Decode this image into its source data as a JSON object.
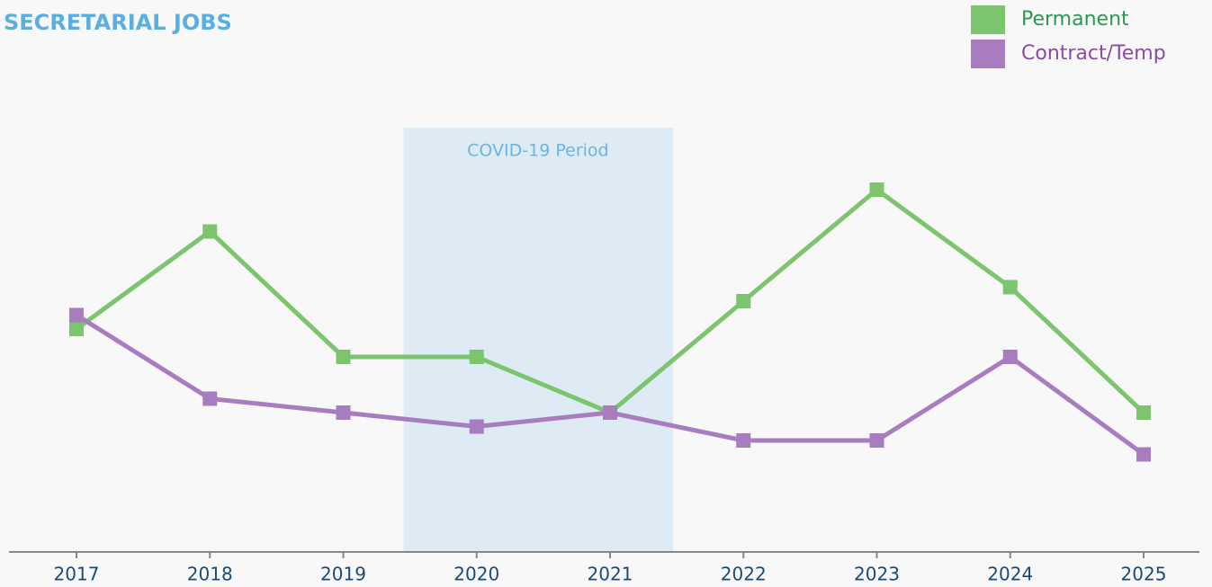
{
  "chart_data": {
    "type": "line",
    "title": "SECRETARIAL JOBS",
    "categories": [
      "2017",
      "2018",
      "2019",
      "2020",
      "2021",
      "2022",
      "2023",
      "2024",
      "2025"
    ],
    "series": [
      {
        "name": "Permanent",
        "color": "#7dc46e",
        "values": [
          16,
          23,
          14,
          14,
          10,
          18,
          26,
          19,
          10
        ]
      },
      {
        "name": "Contract/Temp",
        "color": "#a87dbf",
        "values": [
          17,
          11,
          10,
          9,
          10,
          8,
          8,
          14,
          7
        ]
      }
    ],
    "ylim": [
      0,
      30
    ],
    "annotation": {
      "text": "COVID-19 Period"
    },
    "legend": "top-right",
    "grid": false
  }
}
